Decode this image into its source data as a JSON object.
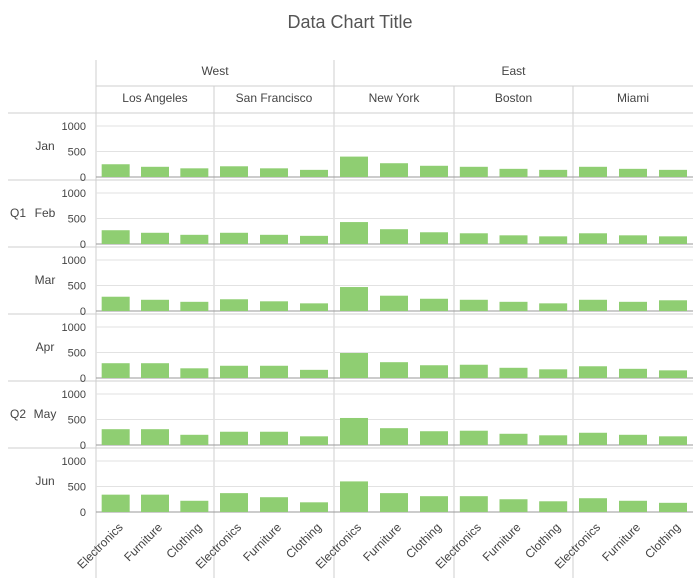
{
  "chart_data": {
    "type": "bar",
    "title": "Data Chart Title",
    "layout": "trellis",
    "regions": [
      {
        "name": "West",
        "cities": [
          "Los Angeles",
          "San Francisco"
        ]
      },
      {
        "name": "East",
        "cities": [
          "New York",
          "Boston",
          "Miami"
        ]
      }
    ],
    "quarters": [
      {
        "name": "Q1",
        "months": [
          "Jan",
          "Feb",
          "Mar"
        ]
      },
      {
        "name": "Q2",
        "months": [
          "Apr",
          "May",
          "Jun"
        ]
      }
    ],
    "categories": [
      "Electronics",
      "Furniture",
      "Clothing"
    ],
    "ylim": [
      0,
      1000
    ],
    "yticks": [
      0,
      500,
      1000
    ],
    "bar_color": "#8fce72",
    "grid": true,
    "values": {
      "Los Angeles": {
        "Jan": [
          250,
          200,
          170
        ],
        "Feb": [
          270,
          220,
          180
        ],
        "Mar": [
          280,
          220,
          180
        ],
        "Apr": [
          290,
          290,
          190
        ],
        "May": [
          310,
          310,
          200
        ],
        "Jun": [
          340,
          340,
          220
        ]
      },
      "San Francisco": {
        "Jan": [
          210,
          170,
          140
        ],
        "Feb": [
          220,
          180,
          160
        ],
        "Mar": [
          230,
          190,
          150
        ],
        "Apr": [
          240,
          240,
          160
        ],
        "May": [
          260,
          260,
          170
        ],
        "Jun": [
          370,
          290,
          190
        ]
      },
      "New York": {
        "Jan": [
          400,
          270,
          220
        ],
        "Feb": [
          430,
          290,
          230
        ],
        "Mar": [
          470,
          300,
          240
        ],
        "Apr": [
          490,
          310,
          250
        ],
        "May": [
          530,
          330,
          270
        ],
        "Jun": [
          600,
          370,
          310
        ]
      },
      "Boston": {
        "Jan": [
          200,
          160,
          140
        ],
        "Feb": [
          210,
          170,
          150
        ],
        "Mar": [
          220,
          180,
          150
        ],
        "Apr": [
          260,
          200,
          170
        ],
        "May": [
          280,
          220,
          190
        ],
        "Jun": [
          310,
          250,
          210
        ]
      },
      "Miami": {
        "Jan": [
          200,
          160,
          140
        ],
        "Feb": [
          210,
          170,
          150
        ],
        "Mar": [
          220,
          180,
          210
        ],
        "Apr": [
          230,
          180,
          150
        ],
        "May": [
          240,
          200,
          170
        ],
        "Jun": [
          270,
          220,
          180
        ]
      }
    }
  }
}
